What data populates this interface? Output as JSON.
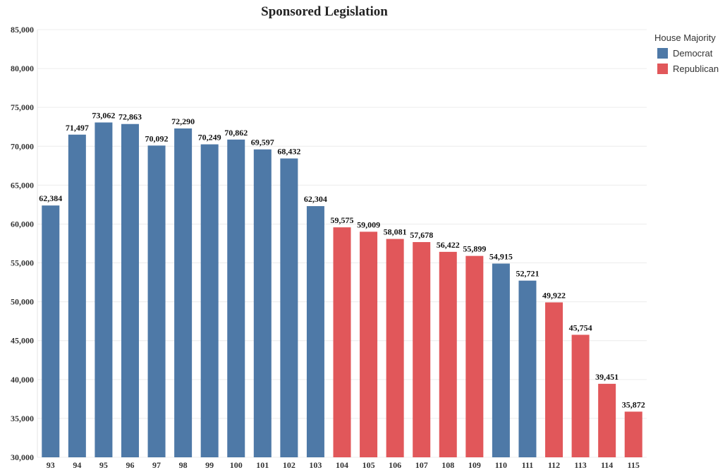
{
  "chart_data": {
    "type": "bar",
    "title": "Sponsored Legislation",
    "xlabel": "",
    "ylabel": "",
    "ylim": [
      30000,
      85000
    ],
    "yticks": [
      30000,
      35000,
      40000,
      45000,
      50000,
      55000,
      60000,
      65000,
      70000,
      75000,
      80000,
      85000
    ],
    "ytick_labels": [
      "30,000",
      "35,000",
      "40,000",
      "45,000",
      "50,000",
      "55,000",
      "60,000",
      "65,000",
      "70,000",
      "75,000",
      "80,000",
      "85,000"
    ],
    "grid": true,
    "categories": [
      "93",
      "94",
      "95",
      "96",
      "97",
      "98",
      "99",
      "100",
      "101",
      "102",
      "103",
      "104",
      "105",
      "106",
      "107",
      "108",
      "109",
      "110",
      "111",
      "112",
      "113",
      "114",
      "115"
    ],
    "values": [
      62384,
      71497,
      73062,
      72863,
      70092,
      72290,
      70249,
      70862,
      69597,
      68432,
      62304,
      59575,
      59009,
      58081,
      57678,
      56422,
      55899,
      54915,
      52721,
      49922,
      45754,
      39451,
      35872
    ],
    "value_labels": [
      "62,384",
      "71,497",
      "73,062",
      "72,863",
      "70,092",
      "72,290",
      "70,249",
      "70,862",
      "69,597",
      "68,432",
      "62,304",
      "59,575",
      "59,009",
      "58,081",
      "57,678",
      "56,422",
      "55,899",
      "54,915",
      "52,721",
      "49,922",
      "45,754",
      "39,451",
      "35,872"
    ],
    "house_majority": [
      "Democrat",
      "Democrat",
      "Democrat",
      "Democrat",
      "Democrat",
      "Democrat",
      "Democrat",
      "Democrat",
      "Democrat",
      "Democrat",
      "Democrat",
      "Republican",
      "Republican",
      "Republican",
      "Republican",
      "Republican",
      "Republican",
      "Democrat",
      "Democrat",
      "Republican",
      "Republican",
      "Republican",
      "Republican"
    ],
    "legend": {
      "title": "House Majority",
      "placement": "top-right",
      "items": [
        {
          "label": "Democrat",
          "color": "#4e79a7"
        },
        {
          "label": "Republican",
          "color": "#e1575a"
        }
      ]
    }
  }
}
